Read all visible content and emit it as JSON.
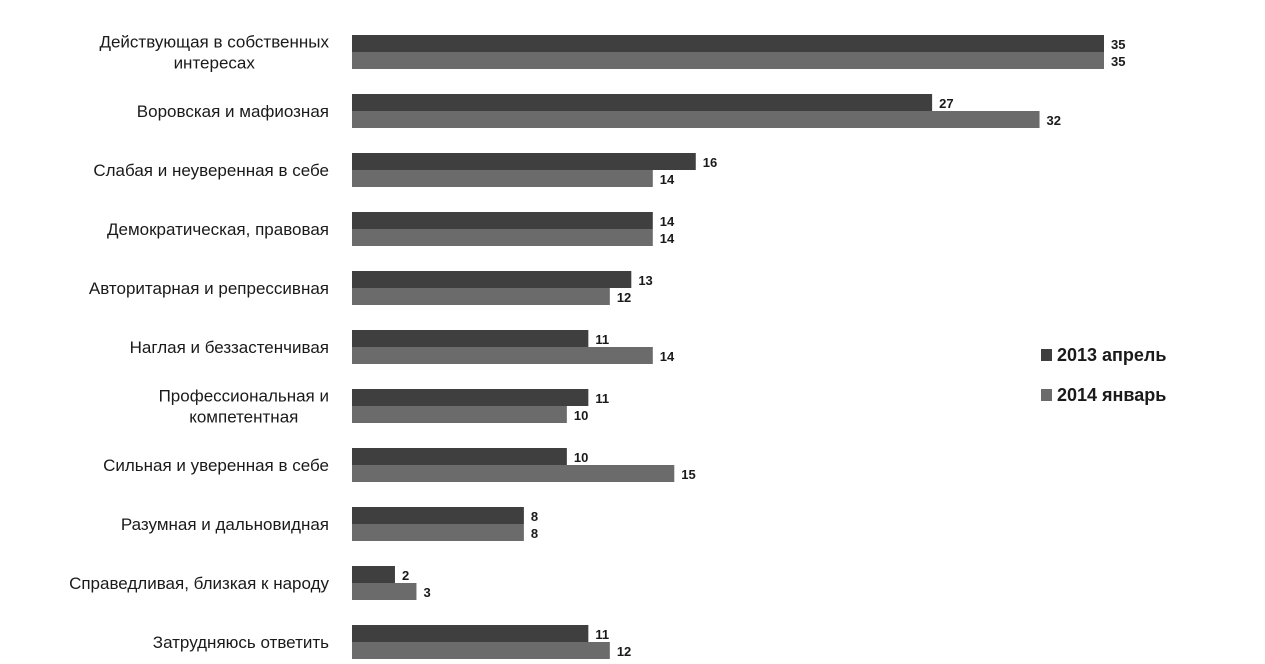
{
  "chart_data": {
    "type": "bar",
    "orientation": "horizontal",
    "categories": [
      [
        "Действующая в собственных",
        "интересах"
      ],
      [
        "Воровская и мафиозная"
      ],
      [
        "Слабая и неуверенная в себе"
      ],
      [
        "Демократическая, правовая"
      ],
      [
        "Авторитарная и репрессивная"
      ],
      [
        "Наглая и беззастенчивая"
      ],
      [
        "Профессиональная и",
        "компетентная"
      ],
      [
        "Сильная и уверенная в себе"
      ],
      [
        "Разумная и дальновидная"
      ],
      [
        "Справедливая, близкая к народу"
      ],
      [
        "Затрудняюсь ответить"
      ]
    ],
    "series": [
      {
        "name": "2013 апрель",
        "color": "#3f3f3f",
        "values": [
          35,
          27,
          16,
          14,
          13,
          11,
          11,
          10,
          8,
          2,
          11
        ]
      },
      {
        "name": "2014 январь",
        "color": "#6b6b6b",
        "values": [
          35,
          32,
          14,
          14,
          12,
          14,
          10,
          15,
          8,
          3,
          12
        ]
      }
    ],
    "xlim": [
      0,
      35
    ],
    "grid": false,
    "legend_position": "right"
  }
}
